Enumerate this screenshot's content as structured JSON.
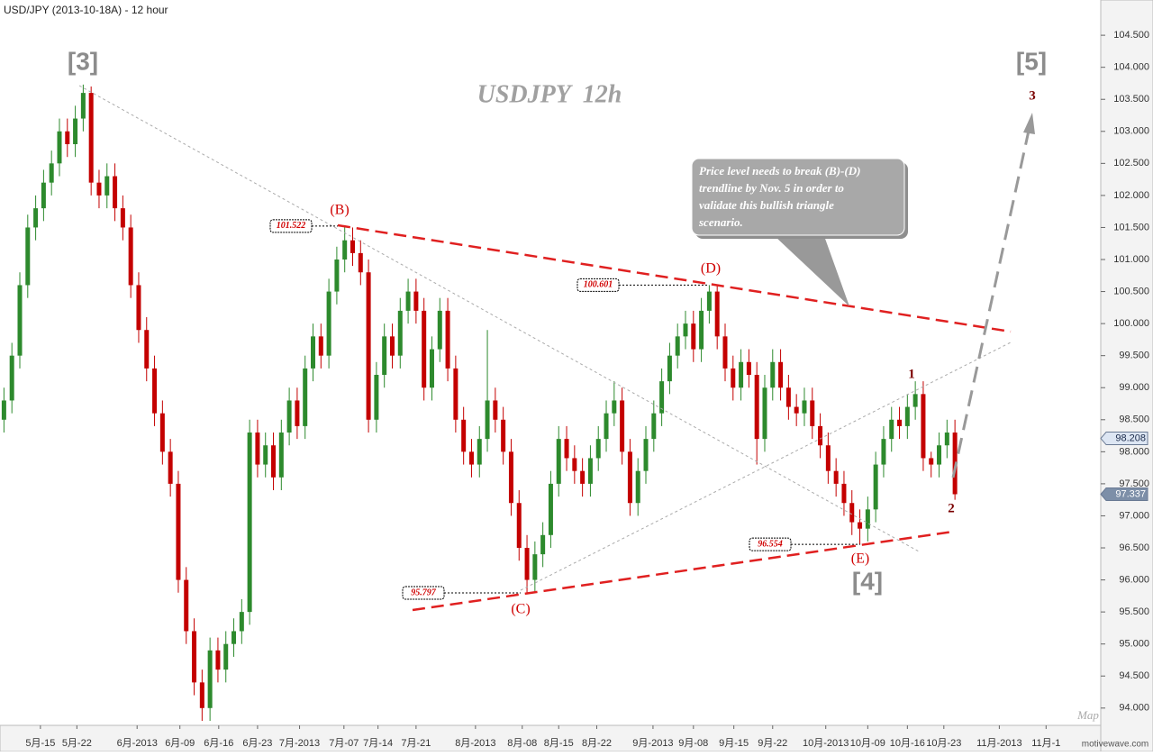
{
  "chart_data": {
    "type": "candlestick",
    "title": "USD/JPY (2013-10-18A) - 12 hour",
    "watermark": "USDJPY  12h",
    "up_color": "#2d8a2d",
    "down_color": "#c40000",
    "xlim": [
      -0.5,
      138.4
    ],
    "ylim": [
      93.73,
      105.05
    ],
    "xticks": [
      {
        "value": 4.6,
        "label": "5月-15"
      },
      {
        "value": 9.2,
        "label": "5月-22"
      },
      {
        "value": 16.8,
        "label": "6月-2013"
      },
      {
        "value": 22.2,
        "label": "6月-09"
      },
      {
        "value": 27.1,
        "label": "6月-16"
      },
      {
        "value": 32.0,
        "label": "6月-23"
      },
      {
        "value": 37.3,
        "label": "7月-2013"
      },
      {
        "value": 42.9,
        "label": "7月-07"
      },
      {
        "value": 47.2,
        "label": "7月-14"
      },
      {
        "value": 52.0,
        "label": "7月-21"
      },
      {
        "value": 59.5,
        "label": "8月-2013"
      },
      {
        "value": 65.4,
        "label": "8月-08"
      },
      {
        "value": 70.0,
        "label": "8月-15"
      },
      {
        "value": 74.8,
        "label": "8月-22"
      },
      {
        "value": 81.9,
        "label": "9月-2013"
      },
      {
        "value": 87.0,
        "label": "9月-08"
      },
      {
        "value": 92.1,
        "label": "9月-15"
      },
      {
        "value": 97.0,
        "label": "9月-22"
      },
      {
        "value": 103.7,
        "label": "10月-2013"
      },
      {
        "value": 109.0,
        "label": "10月-09"
      },
      {
        "value": 114.0,
        "label": "10月-16"
      },
      {
        "value": 118.6,
        "label": "10月-23"
      },
      {
        "value": 125.6,
        "label": "11月-2013"
      },
      {
        "value": 131.5,
        "label": "11月-1"
      }
    ],
    "yticks": [
      {
        "value": 94,
        "label": "94.000"
      },
      {
        "value": 94.5,
        "label": "94.500"
      },
      {
        "value": 95,
        "label": "95.000"
      },
      {
        "value": 95.5,
        "label": "95.500"
      },
      {
        "value": 96,
        "label": "96.000"
      },
      {
        "value": 96.5,
        "label": "96.500"
      },
      {
        "value": 97,
        "label": "97.000"
      },
      {
        "value": 97.5,
        "label": "97.500"
      },
      {
        "value": 98,
        "label": "98.000"
      },
      {
        "value": 98.5,
        "label": "98.500"
      },
      {
        "value": 99,
        "label": "99.000"
      },
      {
        "value": 99.5,
        "label": "99.500"
      },
      {
        "value": 100,
        "label": "100.000"
      },
      {
        "value": 100.5,
        "label": "100.500"
      },
      {
        "value": 101,
        "label": "101.000"
      },
      {
        "value": 101.5,
        "label": "101.500"
      },
      {
        "value": 102,
        "label": "102.000"
      },
      {
        "value": 102.5,
        "label": "102.500"
      },
      {
        "value": 103,
        "label": "103.000"
      },
      {
        "value": 103.5,
        "label": "103.500"
      },
      {
        "value": 104,
        "label": "104.000"
      },
      {
        "value": 104.5,
        "label": "104.500"
      }
    ],
    "candles": [
      [
        98.5,
        99.0,
        98.3,
        98.8
      ],
      [
        98.8,
        99.7,
        98.6,
        99.5
      ],
      [
        99.5,
        100.8,
        99.3,
        100.6
      ],
      [
        100.6,
        101.7,
        100.4,
        101.5
      ],
      [
        101.5,
        102.0,
        101.3,
        101.8
      ],
      [
        101.8,
        102.4,
        101.6,
        102.2
      ],
      [
        102.2,
        102.7,
        102.0,
        102.5
      ],
      [
        102.5,
        103.2,
        102.3,
        103.0
      ],
      [
        103.0,
        103.2,
        102.6,
        102.8
      ],
      [
        102.8,
        103.4,
        102.6,
        103.2
      ],
      [
        103.2,
        103.73,
        103.0,
        103.6
      ],
      [
        103.6,
        103.7,
        102.0,
        102.2
      ],
      [
        102.2,
        102.4,
        101.8,
        102.0
      ],
      [
        102.0,
        102.5,
        101.8,
        102.3
      ],
      [
        102.3,
        102.5,
        101.6,
        101.8
      ],
      [
        101.8,
        102.0,
        101.3,
        101.5
      ],
      [
        101.5,
        101.7,
        100.4,
        100.6
      ],
      [
        100.6,
        100.8,
        99.7,
        99.9
      ],
      [
        99.9,
        100.1,
        99.1,
        99.3
      ],
      [
        99.3,
        99.5,
        98.4,
        98.6
      ],
      [
        98.6,
        98.8,
        97.8,
        98.0
      ],
      [
        98.0,
        98.2,
        97.3,
        97.5
      ],
      [
        97.5,
        97.7,
        95.8,
        96.0
      ],
      [
        96.0,
        96.2,
        95.0,
        95.2
      ],
      [
        95.2,
        95.4,
        94.2,
        94.4
      ],
      [
        94.4,
        94.6,
        93.8,
        94.0
      ],
      [
        94.0,
        95.1,
        93.8,
        94.9
      ],
      [
        94.9,
        95.1,
        94.4,
        94.6
      ],
      [
        94.6,
        95.2,
        94.4,
        95.0
      ],
      [
        95.0,
        95.4,
        94.8,
        95.2
      ],
      [
        95.2,
        95.7,
        95.0,
        95.5
      ],
      [
        95.5,
        98.5,
        95.3,
        98.3
      ],
      [
        98.3,
        98.5,
        97.6,
        97.8
      ],
      [
        97.8,
        98.3,
        97.6,
        98.1
      ],
      [
        98.1,
        98.3,
        97.4,
        97.6
      ],
      [
        97.6,
        98.5,
        97.4,
        98.3
      ],
      [
        98.3,
        99.0,
        98.1,
        98.8
      ],
      [
        98.8,
        99.0,
        98.2,
        98.4
      ],
      [
        98.4,
        99.5,
        98.2,
        99.3
      ],
      [
        99.3,
        100.0,
        99.1,
        99.8
      ],
      [
        99.8,
        100.0,
        99.3,
        99.5
      ],
      [
        99.5,
        100.7,
        99.3,
        100.5
      ],
      [
        100.5,
        101.2,
        100.3,
        101.0
      ],
      [
        101.0,
        101.522,
        100.8,
        101.3
      ],
      [
        101.3,
        101.5,
        100.9,
        101.1
      ],
      [
        101.1,
        101.3,
        100.6,
        100.8
      ],
      [
        100.8,
        101.0,
        98.3,
        98.5
      ],
      [
        98.5,
        99.4,
        98.3,
        99.2
      ],
      [
        99.2,
        100.0,
        99.0,
        99.8
      ],
      [
        99.8,
        100.0,
        99.3,
        99.5
      ],
      [
        99.5,
        100.4,
        99.3,
        100.2
      ],
      [
        100.2,
        100.7,
        100.0,
        100.5
      ],
      [
        100.5,
        100.7,
        100.0,
        100.2
      ],
      [
        100.2,
        100.4,
        98.8,
        99.0
      ],
      [
        99.0,
        99.8,
        98.8,
        99.6
      ],
      [
        99.6,
        100.4,
        99.4,
        100.2
      ],
      [
        100.2,
        100.4,
        99.1,
        99.3
      ],
      [
        99.3,
        99.5,
        98.3,
        98.5
      ],
      [
        98.5,
        98.7,
        97.8,
        98.0
      ],
      [
        98.0,
        98.2,
        97.6,
        97.8
      ],
      [
        97.8,
        98.4,
        97.6,
        98.2
      ],
      [
        98.2,
        99.9,
        98.0,
        98.8
      ],
      [
        98.8,
        99.0,
        98.3,
        98.5
      ],
      [
        98.5,
        98.7,
        97.8,
        98.0
      ],
      [
        98.0,
        98.2,
        97.0,
        97.2
      ],
      [
        97.2,
        97.4,
        96.3,
        96.5
      ],
      [
        96.5,
        96.7,
        95.797,
        96.0
      ],
      [
        96.0,
        96.6,
        95.8,
        96.4
      ],
      [
        96.4,
        96.9,
        96.2,
        96.7
      ],
      [
        96.7,
        97.7,
        96.5,
        97.5
      ],
      [
        97.5,
        98.4,
        97.3,
        98.2
      ],
      [
        98.2,
        98.4,
        97.7,
        97.9
      ],
      [
        97.9,
        98.1,
        97.5,
        97.7
      ],
      [
        97.7,
        97.9,
        97.3,
        97.5
      ],
      [
        97.5,
        98.1,
        97.3,
        97.9
      ],
      [
        97.9,
        98.4,
        97.7,
        98.2
      ],
      [
        98.2,
        98.8,
        98.0,
        98.6
      ],
      [
        98.6,
        99.1,
        98.4,
        98.8
      ],
      [
        98.8,
        99.0,
        97.8,
        98.0
      ],
      [
        98.0,
        98.2,
        97.0,
        97.2
      ],
      [
        97.2,
        97.9,
        97.0,
        97.7
      ],
      [
        97.7,
        98.4,
        97.5,
        98.2
      ],
      [
        98.2,
        98.8,
        98.0,
        98.6
      ],
      [
        98.6,
        99.3,
        98.4,
        99.1
      ],
      [
        99.1,
        99.7,
        98.9,
        99.5
      ],
      [
        99.5,
        100.0,
        99.3,
        99.8
      ],
      [
        99.8,
        100.2,
        99.6,
        100.0
      ],
      [
        100.0,
        100.2,
        99.4,
        99.6
      ],
      [
        99.6,
        100.4,
        99.4,
        100.2
      ],
      [
        100.2,
        100.601,
        100.0,
        100.5
      ],
      [
        100.5,
        100.6,
        99.6,
        99.8
      ],
      [
        99.8,
        100.0,
        99.1,
        99.3
      ],
      [
        99.3,
        99.5,
        98.8,
        99.0
      ],
      [
        99.0,
        99.6,
        98.8,
        99.4
      ],
      [
        99.4,
        99.6,
        99.0,
        99.2
      ],
      [
        99.2,
        99.4,
        97.8,
        98.2
      ],
      [
        98.2,
        99.2,
        98.0,
        99.0
      ],
      [
        99.0,
        99.6,
        98.8,
        99.4
      ],
      [
        99.4,
        99.6,
        98.8,
        99.0
      ],
      [
        99.0,
        99.2,
        98.5,
        98.7
      ],
      [
        98.7,
        98.9,
        98.4,
        98.6
      ],
      [
        98.6,
        99.0,
        98.4,
        98.8
      ],
      [
        98.8,
        99.0,
        98.2,
        98.4
      ],
      [
        98.4,
        98.6,
        97.9,
        98.1
      ],
      [
        98.1,
        98.3,
        97.5,
        97.7
      ],
      [
        97.7,
        97.9,
        97.3,
        97.5
      ],
      [
        97.5,
        97.7,
        97.0,
        97.2
      ],
      [
        97.2,
        97.4,
        96.7,
        96.9
      ],
      [
        96.9,
        97.1,
        96.554,
        96.8
      ],
      [
        96.8,
        97.3,
        96.6,
        97.1
      ],
      [
        97.1,
        98.0,
        96.9,
        97.8
      ],
      [
        97.8,
        98.4,
        97.6,
        98.2
      ],
      [
        98.2,
        98.7,
        98.0,
        98.5
      ],
      [
        98.5,
        98.7,
        98.2,
        98.4
      ],
      [
        98.4,
        98.9,
        98.2,
        98.7
      ],
      [
        98.7,
        99.1,
        98.5,
        98.9
      ],
      [
        98.9,
        99.1,
        97.7,
        97.9
      ],
      [
        97.9,
        98.0,
        97.6,
        97.8
      ],
      [
        97.8,
        98.3,
        97.6,
        98.1
      ],
      [
        98.1,
        98.5,
        97.9,
        98.3
      ],
      [
        98.3,
        98.5,
        97.25,
        97.337
      ]
    ],
    "price_levels": [
      101.522,
      100.601,
      95.797,
      96.554
    ],
    "marker_price": 98.208,
    "last_price": 97.337,
    "annotations": [
      "[3]",
      "[5]",
      "[4]",
      "(B)",
      "(C)",
      "(D)",
      "(E)",
      "1",
      "2",
      "3"
    ],
    "callout": [
      "Price level needs to break (B)-(D)",
      "trendline by Nov. 5 in order to",
      "validate this bullish triangle",
      "scenario."
    ],
    "map_label": "Map",
    "brand": "motivewave.com"
  }
}
